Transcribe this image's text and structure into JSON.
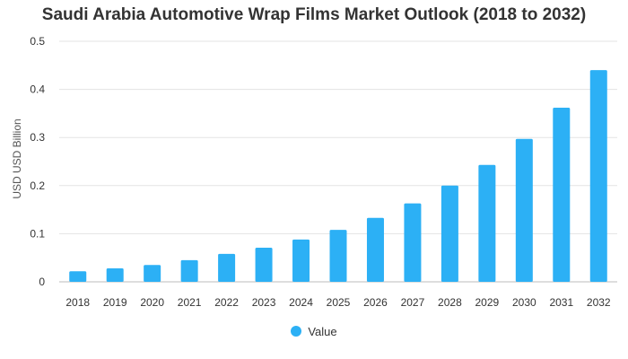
{
  "chart_data": {
    "type": "bar",
    "title": "Saudi Arabia Automotive Wrap Films Market Outlook (2018 to 2032)",
    "xlabel": "",
    "ylabel": "USD USD Billion",
    "ylim": [
      0,
      0.5
    ],
    "yticks": [
      "0",
      "0.1",
      "0.2",
      "0.3",
      "0.4",
      "0.5"
    ],
    "categories": [
      "2018",
      "2019",
      "2020",
      "2021",
      "2022",
      "2023",
      "2024",
      "2025",
      "2026",
      "2027",
      "2028",
      "2029",
      "2030",
      "2031",
      "2032"
    ],
    "series": [
      {
        "name": "Value",
        "color": "#2cb0f5",
        "values": [
          0.022,
          0.028,
          0.035,
          0.045,
          0.058,
          0.071,
          0.088,
          0.108,
          0.133,
          0.163,
          0.2,
          0.243,
          0.297,
          0.362,
          0.44
        ]
      }
    ],
    "grid": true,
    "legend_position": "bottom"
  }
}
